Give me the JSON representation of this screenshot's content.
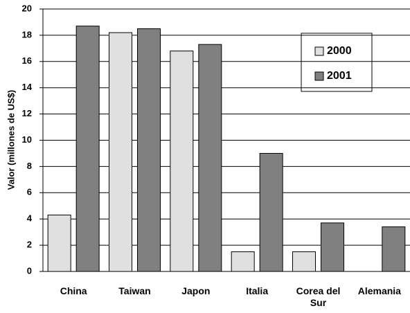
{
  "chart_data": {
    "type": "bar",
    "y_label": "Valor (millones de US$)",
    "categories": [
      "China",
      "Taiwan",
      "Japon",
      "Italia",
      "Corea del Sur",
      "Alemania"
    ],
    "series": [
      {
        "name": "2000",
        "color": "#e0e0e0",
        "values": [
          4.3,
          18.2,
          16.8,
          1.5,
          1.5,
          null
        ]
      },
      {
        "name": "2001",
        "color": "#808080",
        "values": [
          18.7,
          18.5,
          17.3,
          9.0,
          3.7,
          3.4
        ]
      }
    ],
    "ylim": [
      0,
      20
    ],
    "yticks": [
      0,
      2,
      4,
      6,
      8,
      10,
      12,
      14,
      16,
      18,
      20
    ],
    "grid": true
  }
}
